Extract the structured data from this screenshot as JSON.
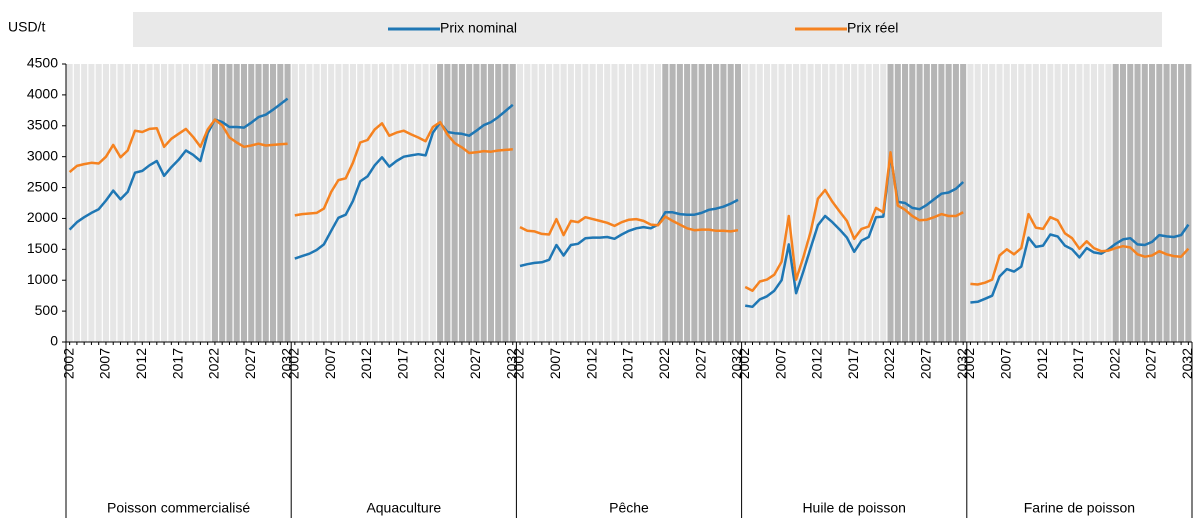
{
  "chart_data": {
    "type": "line",
    "y_label": "USD/t",
    "ylim": [
      0,
      4500
    ],
    "yticks": [
      0,
      500,
      1000,
      1500,
      2000,
      2500,
      3000,
      3500,
      4000,
      4500
    ],
    "x": [
      2002,
      2003,
      2004,
      2005,
      2006,
      2007,
      2008,
      2009,
      2010,
      2011,
      2012,
      2013,
      2014,
      2015,
      2016,
      2017,
      2018,
      2019,
      2020,
      2021,
      2022,
      2023,
      2024,
      2025,
      2026,
      2027,
      2028,
      2029,
      2030,
      2031,
      2032
    ],
    "labeled_every": 5,
    "projection_from": 2022,
    "series": [
      {
        "name": "Prix nominal",
        "color": "#1f77b4"
      },
      {
        "name": "Prix réel",
        "color": "#f58220"
      }
    ],
    "panels": [
      {
        "name": "Poisson commercialisé",
        "values": [
          [
            1820,
            1940,
            2020,
            2090,
            2150,
            2290,
            2450,
            2310,
            2430,
            2740,
            2770,
            2860,
            2930,
            2690,
            2830,
            2950,
            3100,
            3030,
            2930,
            3380,
            3600,
            3560,
            3480,
            3480,
            3470,
            3550,
            3640,
            3680,
            3760,
            3850,
            3940
          ],
          [
            2750,
            2850,
            2880,
            2900,
            2890,
            3000,
            3190,
            2990,
            3100,
            3420,
            3400,
            3450,
            3460,
            3160,
            3290,
            3370,
            3450,
            3320,
            3160,
            3440,
            3600,
            3510,
            3310,
            3230,
            3160,
            3180,
            3210,
            3180,
            3190,
            3200,
            3210
          ]
        ]
      },
      {
        "name": "Aquaculture",
        "values": [
          [
            1350,
            1390,
            1430,
            1490,
            1580,
            1800,
            2010,
            2060,
            2280,
            2600,
            2680,
            2860,
            2990,
            2840,
            2930,
            3000,
            3020,
            3040,
            3020,
            3390,
            3550,
            3400,
            3380,
            3370,
            3340,
            3420,
            3510,
            3560,
            3640,
            3740,
            3840
          ],
          [
            2050,
            2070,
            2080,
            2090,
            2160,
            2430,
            2620,
            2650,
            2900,
            3230,
            3270,
            3440,
            3540,
            3340,
            3390,
            3420,
            3360,
            3310,
            3250,
            3480,
            3560,
            3360,
            3220,
            3150,
            3060,
            3070,
            3090,
            3080,
            3100,
            3110,
            3120
          ]
        ]
      },
      {
        "name": "Pêche",
        "values": [
          [
            1230,
            1260,
            1280,
            1290,
            1330,
            1570,
            1400,
            1570,
            1590,
            1680,
            1690,
            1690,
            1700,
            1670,
            1740,
            1800,
            1840,
            1860,
            1840,
            1900,
            2100,
            2100,
            2070,
            2060,
            2060,
            2090,
            2140,
            2160,
            2190,
            2240,
            2300
          ],
          [
            1860,
            1800,
            1790,
            1750,
            1740,
            1990,
            1730,
            1960,
            1940,
            2020,
            1990,
            1960,
            1930,
            1880,
            1940,
            1980,
            1990,
            1960,
            1900,
            1890,
            2030,
            1960,
            1900,
            1840,
            1810,
            1820,
            1820,
            1800,
            1800,
            1790,
            1810
          ]
        ]
      },
      {
        "name": "Huile de poisson",
        "values": [
          [
            590,
            570,
            690,
            740,
            830,
            1000,
            1580,
            790,
            1140,
            1520,
            1890,
            2040,
            1940,
            1820,
            1690,
            1460,
            1640,
            1700,
            2020,
            2030,
            3030,
            2270,
            2250,
            2170,
            2150,
            2220,
            2310,
            2400,
            2420,
            2480,
            2590
          ],
          [
            890,
            830,
            980,
            1010,
            1090,
            1300,
            2040,
            1010,
            1370,
            1780,
            2320,
            2460,
            2270,
            2110,
            1960,
            1670,
            1830,
            1870,
            2170,
            2100,
            3070,
            2210,
            2140,
            2040,
            1970,
            1980,
            2020,
            2070,
            2040,
            2040,
            2100
          ]
        ]
      },
      {
        "name": "Farine de poisson",
        "values": [
          [
            640,
            650,
            700,
            750,
            1060,
            1180,
            1140,
            1220,
            1690,
            1540,
            1560,
            1740,
            1710,
            1560,
            1500,
            1370,
            1520,
            1450,
            1430,
            1500,
            1590,
            1660,
            1680,
            1580,
            1570,
            1620,
            1730,
            1710,
            1700,
            1730,
            1900
          ],
          [
            940,
            930,
            960,
            1010,
            1400,
            1500,
            1420,
            1520,
            2070,
            1850,
            1830,
            2020,
            1970,
            1760,
            1680,
            1510,
            1630,
            1520,
            1470,
            1480,
            1520,
            1550,
            1530,
            1420,
            1380,
            1400,
            1470,
            1420,
            1390,
            1380,
            1510
          ]
        ]
      }
    ]
  }
}
